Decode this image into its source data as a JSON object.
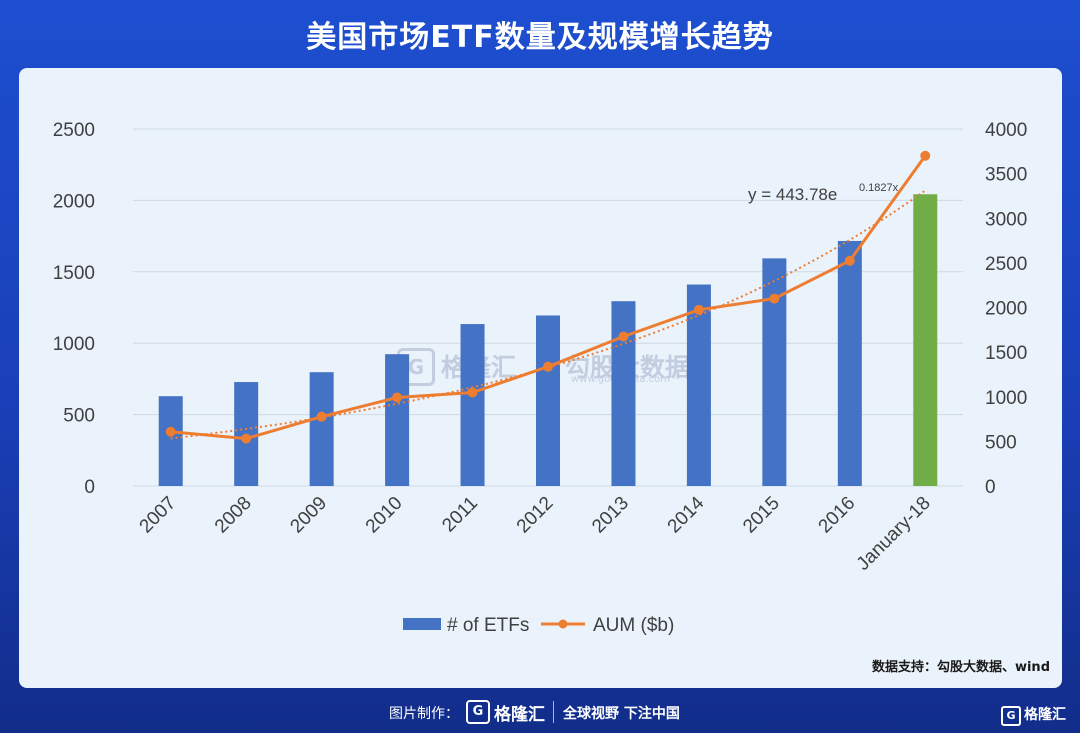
{
  "page": {
    "title": "美国市场ETF数量及规模增长趋势",
    "source": "数据支持：勾股大数据、wind",
    "footer_credit": "图片制作：",
    "footer_logo_glyph": "G",
    "footer_brand": "格隆汇",
    "footer_slogan": "全球视野 下注中国",
    "corner_brand": "格隆汇",
    "watermark_brand": "格隆汇",
    "watermark_name": "勾股大数据",
    "watermark_url": "www.gogudata.com"
  },
  "chart_data": {
    "type": "bar",
    "categories": [
      "2007",
      "2008",
      "2009",
      "2010",
      "2011",
      "2012",
      "2013",
      "2014",
      "2015",
      "2016",
      "January-18"
    ],
    "series": [
      {
        "name": "# of ETFs",
        "type": "bar",
        "axis": "left",
        "color": "#4472c4",
        "highlight_color": "#70ad47",
        "highlight_index": 10,
        "values": [
          629,
          728,
          797,
          923,
          1134,
          1194,
          1294,
          1411,
          1594,
          1716,
          2043
        ]
      },
      {
        "name": "AUM ($b)",
        "type": "line",
        "axis": "right",
        "color": "#ed7d31",
        "values": [
          608,
          531,
          777,
          992,
          1048,
          1337,
          1675,
          1974,
          2100,
          2524,
          3700
        ]
      }
    ],
    "trendline": {
      "label": "y = 443.78e",
      "exponent": "0.1827x",
      "style": "dotted",
      "color": "#ed7d31",
      "a": 443.78,
      "b": 0.1827
    },
    "y_left": {
      "min": 0,
      "max": 2500,
      "ticks": [
        "0",
        "500",
        "1000",
        "1500",
        "2000",
        "2500"
      ]
    },
    "y_right": {
      "min": 0,
      "max": 4000,
      "ticks": [
        "0",
        "500",
        "1000",
        "1500",
        "2000",
        "2500",
        "3000",
        "3500",
        "4000"
      ]
    },
    "grid": true,
    "legend_position": "bottom-center"
  }
}
